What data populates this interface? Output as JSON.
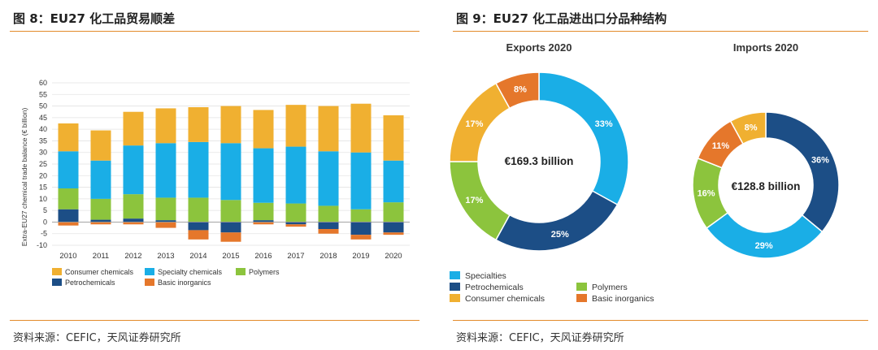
{
  "left": {
    "title": "图 8：EU27 化工品贸易顺差",
    "source": "资料来源：CEFIC，天风证券研究所"
  },
  "right": {
    "title": "图 9：EU27 化工品进出口分品种结构",
    "source": "资料来源：CEFIC，天风证券研究所"
  },
  "colors": {
    "consumer": "#f0b031",
    "specialty": "#1aaee6",
    "polymers": "#8cc43d",
    "petro": "#1c4e86",
    "inorganic": "#e5772b",
    "rule": "#e38a2a"
  },
  "chart_data": [
    {
      "type": "bar",
      "stacked": true,
      "title": "",
      "ylabel": "Extra-EU27 chemical trade balance (€ billion)",
      "ylim": [
        -10,
        60
      ],
      "yticks": [
        60,
        55,
        50,
        45,
        40,
        35,
        30,
        25,
        20,
        15,
        10,
        5,
        0,
        -5,
        -10
      ],
      "categories": [
        "2010",
        "2011",
        "2012",
        "2013",
        "2014",
        "2015",
        "2016",
        "2017",
        "2018",
        "2019",
        "2020"
      ],
      "series": [
        {
          "name": "Petrochemicals",
          "key": "petro",
          "values": [
            5.5,
            1,
            1.5,
            0.8,
            -3.5,
            -4.5,
            0.8,
            -1,
            -3,
            -5.5,
            -4.5
          ]
        },
        {
          "name": "Basic inorganics",
          "key": "inorganic",
          "values": [
            -1.5,
            -1,
            -1,
            -2.5,
            -4,
            -4,
            -1,
            -1,
            -2,
            -2,
            -1
          ]
        },
        {
          "name": "Polymers",
          "key": "polymers",
          "values": [
            9,
            9,
            10.5,
            9.7,
            10.5,
            9.5,
            7.5,
            8,
            7,
            5.5,
            8.5
          ]
        },
        {
          "name": "Specialty chemicals",
          "key": "specialty",
          "values": [
            16,
            16.5,
            21,
            23.5,
            24,
            24.5,
            23.5,
            24.5,
            23.5,
            24.5,
            18
          ]
        },
        {
          "name": "Consumer chemicals",
          "key": "consumer",
          "values": [
            12,
            13,
            14.5,
            15,
            15,
            16,
            16.5,
            18,
            19.5,
            21,
            19.5
          ]
        }
      ],
      "legend": {
        "row1": [
          {
            "label": "Consumer chemicals",
            "key": "consumer"
          },
          {
            "label": "Specialty chemicals",
            "key": "specialty"
          },
          {
            "label": "Polymers",
            "key": "polymers"
          }
        ],
        "row2": [
          {
            "label": "Petrochemicals",
            "key": "petro"
          },
          {
            "label": "Basic inorganics",
            "key": "inorganic"
          }
        ]
      }
    },
    {
      "type": "pie",
      "donut": true,
      "title": "Exports 2020",
      "center_label": "€169.3 billion",
      "slices": [
        {
          "name": "Specialties",
          "key": "specialty",
          "value": 33,
          "label": "33%"
        },
        {
          "name": "Petrochemicals",
          "key": "petro",
          "value": 25,
          "label": "25%"
        },
        {
          "name": "Polymers",
          "key": "polymers",
          "value": 17,
          "label": "17%"
        },
        {
          "name": "Consumer chemicals",
          "key": "consumer",
          "value": 17,
          "label": "17%"
        },
        {
          "name": "Basic inorganics",
          "key": "inorganic",
          "value": 8,
          "label": "8%"
        }
      ]
    },
    {
      "type": "pie",
      "donut": true,
      "title": "Imports 2020",
      "center_label": "€128.8 billion",
      "slices": [
        {
          "name": "Petrochemicals",
          "key": "petro",
          "value": 36,
          "label": "36%"
        },
        {
          "name": "Specialties",
          "key": "specialty",
          "value": 29,
          "label": "29%"
        },
        {
          "name": "Polymers",
          "key": "polymers",
          "value": 16,
          "label": "16%"
        },
        {
          "name": "Basic inorganics",
          "key": "inorganic",
          "value": 11,
          "label": "11%"
        },
        {
          "name": "Consumer chemicals",
          "key": "consumer",
          "value": 8,
          "label": "8%"
        }
      ]
    }
  ],
  "pie_legend": {
    "col1": [
      {
        "label": "Specialties",
        "key": "specialty"
      },
      {
        "label": "Petrochemicals",
        "key": "petro"
      },
      {
        "label": "Consumer chemicals",
        "key": "consumer"
      }
    ],
    "col2": [
      {
        "label": "Polymers",
        "key": "polymers"
      },
      {
        "label": "Basic inorganics",
        "key": "inorganic"
      }
    ]
  }
}
